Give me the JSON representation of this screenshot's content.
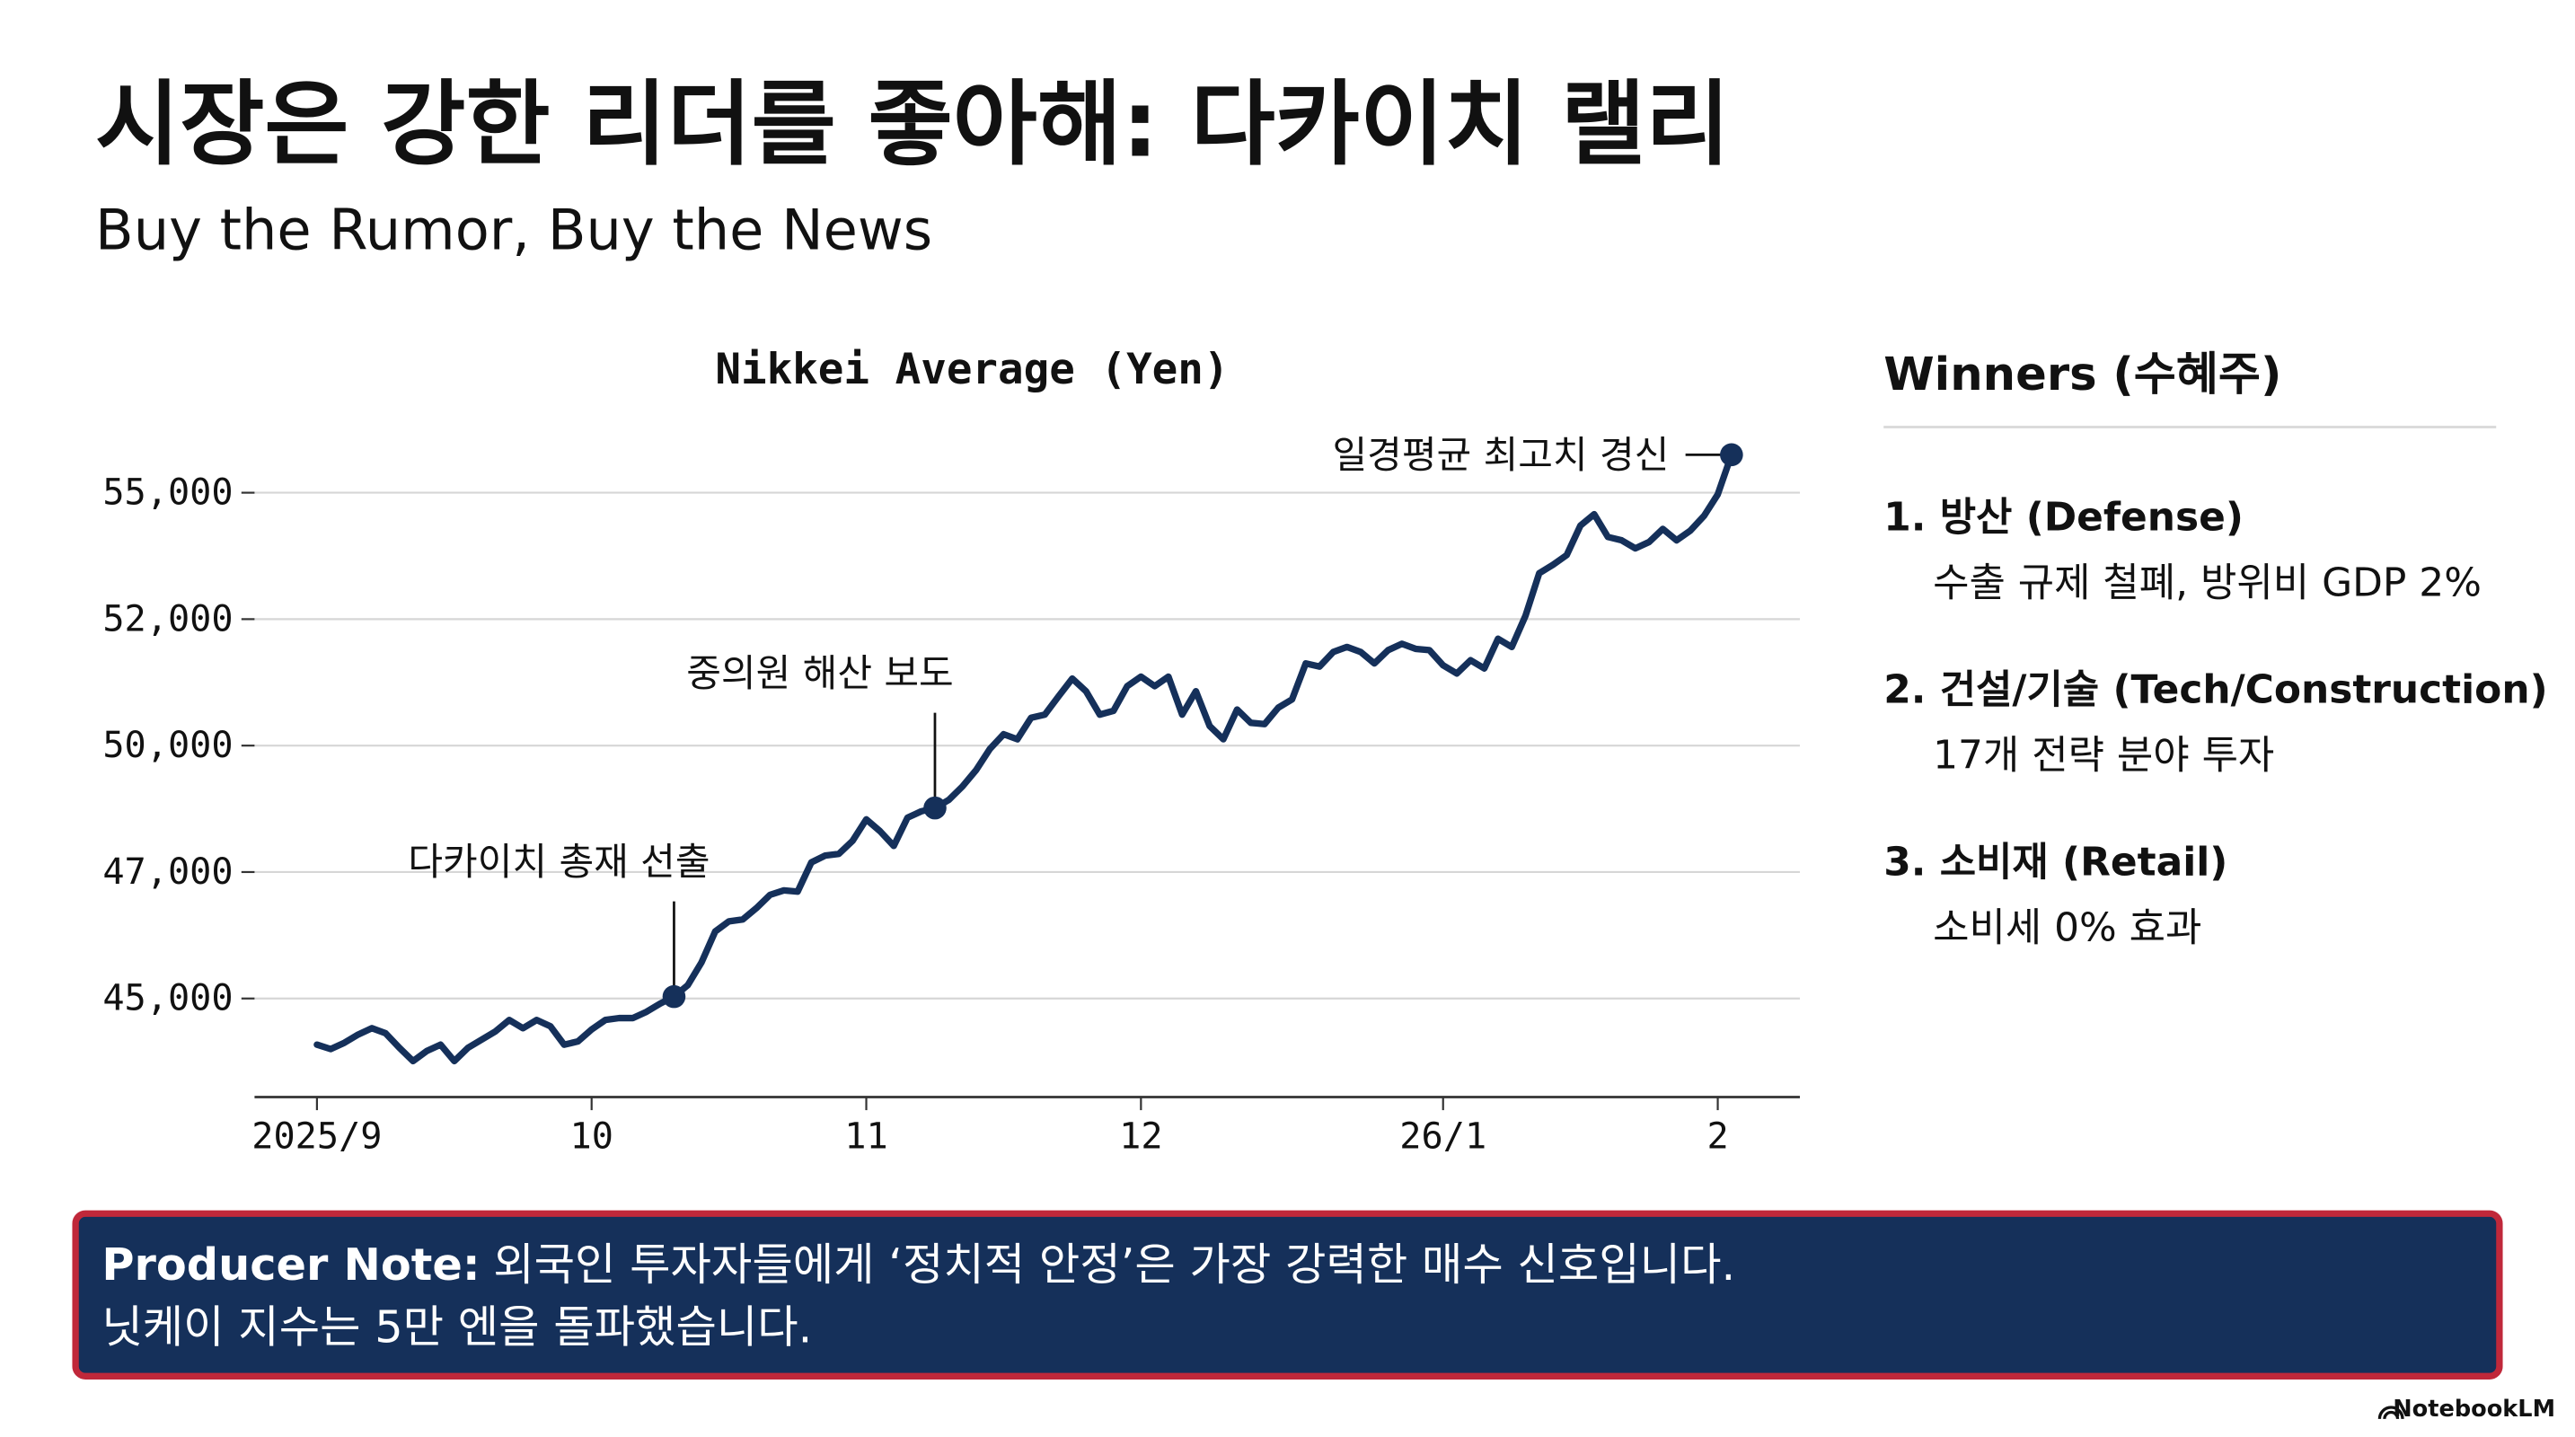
{
  "title": "시장은 강한 리더를 좋아해: 다카이치 랠리",
  "subtitle": "Buy the Rumor, Buy the News",
  "chart_data": {
    "type": "line",
    "title": "Nikkei Average (Yen)",
    "color": "#15305a",
    "grid": true,
    "categories": [
      "2025/9",
      null,
      null,
      null,
      null,
      null,
      null,
      null,
      null,
      null,
      null,
      null,
      null,
      null,
      null,
      null,
      null,
      null,
      null,
      null,
      "10",
      null,
      null,
      null,
      null,
      null,
      null,
      null,
      null,
      null,
      null,
      null,
      null,
      null,
      null,
      null,
      null,
      null,
      null,
      null,
      "11",
      null,
      null,
      null,
      null,
      null,
      null,
      null,
      null,
      null,
      null,
      null,
      null,
      null,
      null,
      null,
      null,
      null,
      null,
      null,
      "12",
      null,
      null,
      null,
      null,
      null,
      null,
      null,
      null,
      null,
      null,
      null,
      null,
      null,
      null,
      null,
      null,
      null,
      null,
      null,
      null,
      null,
      "26/1",
      null,
      null,
      null,
      null,
      null,
      null,
      null,
      null,
      null,
      null,
      null,
      null,
      null,
      null,
      null,
      null,
      null,
      null,
      null,
      "2",
      null
    ],
    "values": [
      44270,
      44200,
      44300,
      44430,
      44530,
      44450,
      44220,
      44010,
      44170,
      44270,
      44010,
      44220,
      44350,
      44480,
      44660,
      44530,
      44660,
      44560,
      44270,
      44320,
      44510,
      44660,
      44690,
      44690,
      44790,
      44920,
      45030,
      45210,
      45570,
      46060,
      46220,
      46250,
      46430,
      46640,
      46710,
      46690,
      47230,
      47390,
      47430,
      47740,
      48250,
      47970,
      47620,
      48290,
      48440,
      48520,
      48710,
      49030,
      49420,
      49920,
      50180,
      50100,
      50440,
      50490,
      50780,
      51060,
      50860,
      50490,
      50550,
      50940,
      51090,
      50940,
      51090,
      50490,
      50860,
      50310,
      50100,
      50570,
      50360,
      50340,
      50600,
      50730,
      51300,
      51250,
      51480,
      51560,
      51480,
      51300,
      51510,
      51610,
      51530,
      51510,
      51270,
      51140,
      51350,
      51220,
      51690,
      51560,
      52080,
      53090,
      53290,
      53520,
      54220,
      54490,
      53950,
      53870,
      53680,
      53830,
      54140,
      53870,
      54100,
      54450,
      54960,
      55900
    ],
    "ylim": [
      43500,
      56500
    ],
    "yticks": [
      {
        "value": 45000,
        "label": "45,000"
      },
      {
        "value": 47000,
        "label": "47,000"
      },
      {
        "value": 50000,
        "label": "50,000"
      },
      {
        "value": 52000,
        "label": "52,000"
      },
      {
        "value": 55000,
        "label": "55,000"
      }
    ],
    "annotations": [
      {
        "text": "다카이치 총재 선출",
        "point": 26
      },
      {
        "text": "중의원 해산 보도",
        "point": 45
      },
      {
        "text": "일경평균 최고치 경신",
        "point": 103
      }
    ]
  },
  "winners": {
    "title": "Winners (수혜주)",
    "items": [
      {
        "name": "1. 방산 (Defense)",
        "detail": "수출 규제 철폐, 방위비 GDP 2%"
      },
      {
        "name": "2. 건설/기술 (Tech/Construction)",
        "detail": "17개 전략 분야 투자"
      },
      {
        "name": "3. 소비재 (Retail)",
        "detail": "소비세 0% 효과"
      }
    ]
  },
  "note": {
    "label": "Producer Note:",
    "lines": [
      "외국인 투자자들에게 ‘정치적 안정’은 가장 강력한 매수 신호입니다.",
      "닛케이 지수는 5만 엔을 돌파했습니다."
    ]
  },
  "brand": "NotebookLM"
}
